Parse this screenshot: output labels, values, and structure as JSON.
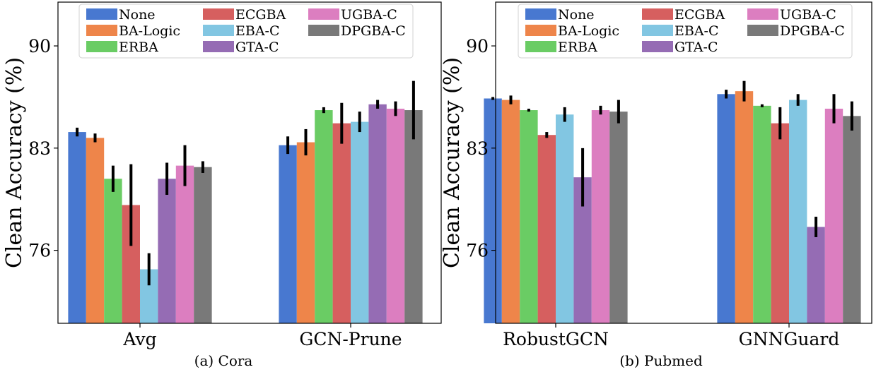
{
  "chart_data": [
    {
      "type": "bar",
      "caption": "(a) Cora",
      "ylabel": "Clean Accuracy (%)",
      "yticks": [
        76,
        83,
        90
      ],
      "ylim": [
        71,
        93
      ],
      "categories": [
        "Avg",
        "GCN-Prune"
      ],
      "legend_placement": "top-center",
      "grid": false,
      "series": [
        {
          "name": "None",
          "color": "#4878d0",
          "values": [
            84.1,
            83.2
          ],
          "errors": [
            0.3,
            0.6
          ]
        },
        {
          "name": "BA-Logic",
          "color": "#ee854a",
          "values": [
            83.7,
            83.4
          ],
          "errors": [
            0.3,
            0.9
          ]
        },
        {
          "name": "ERBA",
          "color": "#6acc64",
          "values": [
            80.9,
            85.6
          ],
          "errors": [
            0.9,
            0.2
          ]
        },
        {
          "name": "ECGBA",
          "color": "#d65f5f",
          "values": [
            79.1,
            84.7
          ],
          "errors": [
            2.8,
            1.4
          ]
        },
        {
          "name": "EBA-C",
          "color": "#82c6e2",
          "values": [
            74.7,
            84.8
          ],
          "errors": [
            1.1,
            0.7
          ]
        },
        {
          "name": "GTA-C",
          "color": "#956cb4",
          "values": [
            80.9,
            86.0
          ],
          "errors": [
            1.1,
            0.3
          ]
        },
        {
          "name": "UGBA-C",
          "color": "#dc7ec0",
          "values": [
            81.8,
            85.7
          ],
          "errors": [
            1.4,
            0.5
          ]
        },
        {
          "name": "DPGBA-C",
          "color": "#797979",
          "values": [
            81.7,
            85.6
          ],
          "errors": [
            0.4,
            2.0
          ]
        }
      ]
    },
    {
      "type": "bar",
      "caption": "(b) Pubmed",
      "ylabel": "Clean Accuracy (%)",
      "yticks": [
        76,
        83,
        90
      ],
      "ylim": [
        71,
        93
      ],
      "categories": [
        "RobustGCN",
        "GNNGuard"
      ],
      "legend_placement": "top-center",
      "grid": false,
      "series": [
        {
          "name": "None",
          "color": "#4878d0",
          "values": [
            86.4,
            86.7
          ],
          "errors": [
            0.1,
            0.3
          ]
        },
        {
          "name": "BA-Logic",
          "color": "#ee854a",
          "values": [
            86.3,
            86.9
          ],
          "errors": [
            0.3,
            0.7
          ]
        },
        {
          "name": "ERBA",
          "color": "#6acc64",
          "values": [
            85.6,
            85.9
          ],
          "errors": [
            0.1,
            0.1
          ]
        },
        {
          "name": "ECGBA",
          "color": "#d65f5f",
          "values": [
            83.9,
            84.7
          ],
          "errors": [
            0.2,
            1.1
          ]
        },
        {
          "name": "EBA-C",
          "color": "#82c6e2",
          "values": [
            85.3,
            86.3
          ],
          "errors": [
            0.5,
            0.4
          ]
        },
        {
          "name": "GTA-C",
          "color": "#956cb4",
          "values": [
            81.0,
            77.6
          ],
          "errors": [
            2.0,
            0.7
          ]
        },
        {
          "name": "UGBA-C",
          "color": "#dc7ec0",
          "values": [
            85.6,
            85.7
          ],
          "errors": [
            0.3,
            1.0
          ]
        },
        {
          "name": "DPGBA-C",
          "color": "#797979",
          "values": [
            85.5,
            85.2
          ],
          "errors": [
            0.8,
            1.0
          ]
        }
      ]
    }
  ]
}
